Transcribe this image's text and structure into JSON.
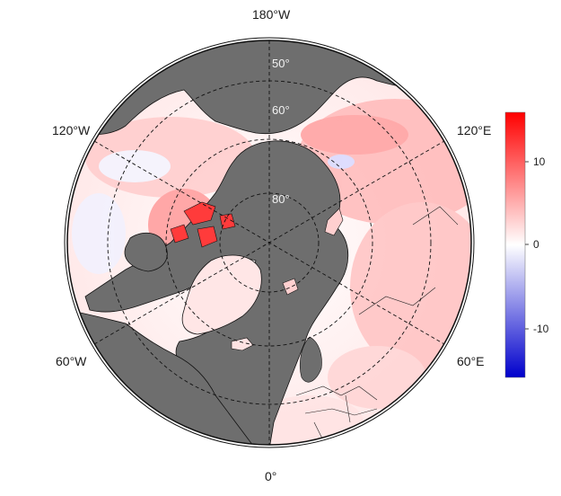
{
  "map": {
    "projection": "north-polar-stereographic",
    "ocean_color": "#6e6e6e",
    "lon_labels": [
      "180°W",
      "120°W",
      "120°E",
      "60°W",
      "60°E",
      "0°"
    ],
    "lat_labels": [
      "50°",
      "60°",
      "80°"
    ]
  },
  "legend": {
    "ticks": [
      "10",
      "0",
      "-10"
    ],
    "max_value": 15,
    "min_value": -15,
    "colors": {
      "high": "#ff0000",
      "mid": "#ffffff",
      "low": "#0000cc"
    }
  }
}
